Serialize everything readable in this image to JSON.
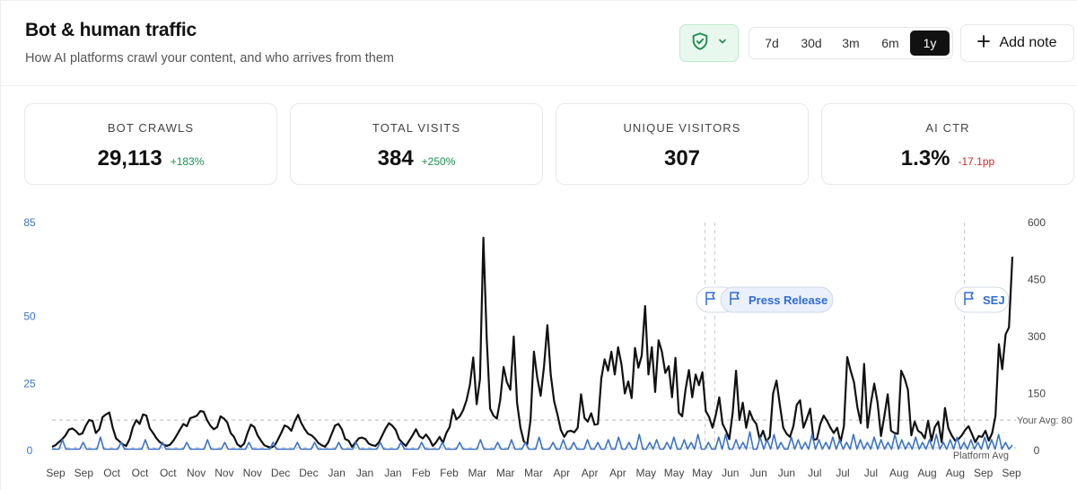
{
  "header": {
    "title": "Bot & human traffic",
    "subtitle": "How AI platforms crawl your content, and who arrives from them"
  },
  "toolbar": {
    "filter_icon": "shield-check-icon",
    "ranges": [
      "7d",
      "30d",
      "3m",
      "6m",
      "1y"
    ],
    "active_range": "1y",
    "add_note_label": "Add note"
  },
  "stats": [
    {
      "label": "BOT CRAWLS",
      "value": "29,113",
      "delta": "+183%",
      "trend": "positive"
    },
    {
      "label": "TOTAL VISITS",
      "value": "384",
      "delta": "+250%",
      "trend": "positive"
    },
    {
      "label": "UNIQUE VISITORS",
      "value": "307",
      "delta": "",
      "trend": "none"
    },
    {
      "label": "AI CTR",
      "value": "1.3%",
      "delta": "-17.1pp",
      "trend": "negative"
    }
  ],
  "colors": {
    "bot_line": "#111111",
    "visits_line": "#3b73c9",
    "positive": "#17924b",
    "negative": "#d12b2b",
    "accent_blue": "#2f6bd8"
  },
  "chart_data": {
    "type": "line",
    "grid": false,
    "x_tick_labels": [
      "Sep",
      "Sep",
      "Oct",
      "Oct",
      "Oct",
      "Nov",
      "Nov",
      "Nov",
      "Dec",
      "Dec",
      "Jan",
      "Jan",
      "Jan",
      "Feb",
      "Feb",
      "Mar",
      "Mar",
      "Mar",
      "Apr",
      "Apr",
      "Apr",
      "May",
      "May",
      "May",
      "Jun",
      "Jun",
      "Jun",
      "Jul",
      "Jul",
      "Jul",
      "Aug",
      "Aug",
      "Aug",
      "Sep",
      "Sep"
    ],
    "y_left": {
      "ticks": [
        "0",
        "25",
        "50",
        "85"
      ],
      "range": [
        0,
        85
      ]
    },
    "y_right": {
      "ticks": [
        "0",
        "150",
        "300",
        "450",
        "600"
      ],
      "range": [
        0,
        600
      ]
    },
    "series": [
      {
        "axis": "right",
        "values": [
          10,
          14,
          22,
          30,
          40,
          55,
          58,
          52,
          42,
          45,
          65,
          80,
          78,
          46,
          56,
          88,
          95,
          100,
          60,
          32,
          24,
          16,
          12,
          30,
          62,
          80,
          70,
          95,
          92,
          58,
          46,
          32,
          22,
          16,
          12,
          15,
          26,
          40,
          56,
          70,
          64,
          85,
          88,
          92,
          104,
          102,
          80,
          65,
          56,
          62,
          90,
          84,
          74,
          46,
          36,
          16,
          10,
          18,
          46,
          68,
          62,
          40,
          26,
          14,
          10,
          8,
          12,
          28,
          46,
          66,
          62,
          52,
          76,
          94,
          72,
          56,
          44,
          40,
          32,
          20,
          14,
          10,
          22,
          44,
          66,
          70,
          56,
          30,
          26,
          10,
          20,
          32,
          34,
          30,
          18,
          14,
          12,
          22,
          40,
          58,
          72,
          65,
          54,
          30,
          20,
          12,
          26,
          40,
          56,
          38,
          32,
          42,
          30,
          12,
          22,
          36,
          20,
          46,
          62,
          108,
          82,
          90,
          106,
          132,
          172,
          245,
          122,
          188,
          560,
          296,
          110,
          92,
          84,
          132,
          220,
          180,
          160,
          300,
          126,
          60,
          24,
          16,
          80,
          260,
          192,
          144,
          220,
          330,
          200,
          130,
          94,
          54,
          36,
          50,
          52,
          48,
          60,
          148,
          86,
          76,
          98,
          68,
          70,
          190,
          240,
          210,
          260,
          200,
          272,
          226,
          150,
          182,
          138,
          270,
          218,
          250,
          380,
          200,
          272,
          154,
          290,
          260,
          204,
          222,
          140,
          244,
          100,
          90,
          160,
          212,
          140,
          200,
          172,
          206,
          104,
          88,
          60,
          94,
          140,
          70,
          52,
          30,
          100,
          210,
          80,
          126,
          60,
          104,
          82,
          70,
          30,
          52,
          24,
          36,
          150,
          184,
          120,
          60,
          44,
          36,
          64,
          120,
          132,
          60,
          84,
          110,
          28,
          30,
          70,
          92,
          78,
          60,
          46,
          60,
          22,
          64,
          246,
          210,
          180,
          114,
          72,
          228,
          60,
          124,
          176,
          126,
          38,
          90,
          148,
          52,
          46,
          44,
          210,
          190,
          160,
          40,
          76,
          52,
          46,
          32,
          78,
          26,
          62,
          76,
          22,
          112,
          58,
          40,
          26,
          30,
          40,
          54,
          64,
          44,
          22,
          38,
          36,
          52,
          26,
          46,
          92,
          280,
          214,
          306,
          324,
          510
        ]
      },
      {
        "axis": "left",
        "values": [
          0.5,
          0.5,
          0.5,
          4,
          0.5,
          0.5,
          0.5,
          0.5,
          0.5,
          3,
          0.5,
          0.5,
          0.5,
          0.5,
          5,
          0.5,
          0.5,
          0.5,
          0.5,
          0.5,
          3,
          0.5,
          0.5,
          0.5,
          0.5,
          0.5,
          0.5,
          4,
          0.5,
          0.5,
          0.5,
          0.5,
          3,
          0.5,
          0.5,
          0.5,
          0.5,
          0.5,
          0.5,
          3,
          0.5,
          0.5,
          0.5,
          0.5,
          0.5,
          4,
          0.5,
          0.5,
          0.5,
          0.5,
          3,
          0.5,
          0.5,
          0.5,
          0.5,
          0.5,
          0.5,
          3,
          0.5,
          0.5,
          0.5,
          0.5,
          0.5,
          0.5,
          3,
          0.5,
          0.5,
          0.5,
          0.5,
          0.5,
          0.5,
          3,
          0.5,
          0.5,
          0.5,
          0.5,
          3,
          0.5,
          0.5,
          0.5,
          0.5,
          0.5,
          0.5,
          3,
          0.5,
          0.5,
          0.5,
          0.5,
          3,
          0.5,
          0.5,
          0.5,
          0.5,
          0.5,
          0.5,
          3,
          0.5,
          0.5,
          0.5,
          0.5,
          0.5,
          3,
          0.5,
          0.5,
          0.5,
          0.5,
          0.5,
          3,
          0.5,
          0.5,
          0.5,
          0.5,
          0.5,
          3,
          0.5,
          0.5,
          0.5,
          0.5,
          3,
          0.5,
          0.5,
          0.5,
          0.5,
          0.5,
          4,
          0.5,
          0.5,
          0.5,
          0.5,
          3,
          0.5,
          0.5,
          0.5,
          4,
          0.5,
          0.5,
          0.5,
          3,
          0.5,
          0.5,
          0.5,
          5,
          0.5,
          0.5,
          0.5,
          3,
          0.5,
          0.5,
          4,
          0.5,
          0.5,
          3,
          0.5,
          0.5,
          0.5,
          4,
          0.5,
          0.5,
          3,
          0.5,
          0.5,
          4,
          0.5,
          0.5,
          5,
          0.5,
          0.5,
          3,
          0.5,
          0.5,
          6,
          0.5,
          0.5,
          3,
          0.5,
          4,
          0.5,
          0.5,
          3,
          0.5,
          5,
          0.5,
          0.5,
          4,
          0.5,
          3,
          0.5,
          6,
          0.5,
          0.5,
          3,
          0.5,
          0.5,
          5,
          0.5,
          6,
          0.5,
          0.5,
          4,
          0.5,
          3,
          0.5,
          7,
          0.5,
          0.5,
          5,
          0.5,
          4,
          0.5,
          6,
          0.5,
          3,
          0.5,
          0.5,
          5,
          0.5,
          4,
          0.5,
          3,
          0.5,
          6,
          0.5,
          4,
          0.5,
          3,
          0.5,
          5,
          0.5,
          4,
          0.5,
          3,
          0.5,
          6,
          0.5,
          4,
          0.5,
          3,
          0.5,
          5,
          0.5,
          4,
          0.5,
          3,
          0.5,
          6,
          0.5,
          4,
          0.5,
          3,
          0.5,
          5,
          0.5,
          3,
          0.5,
          4,
          0.5,
          6,
          0.5,
          3,
          0.5,
          4,
          0.5,
          5,
          0.5,
          3,
          0.5,
          4,
          0.5,
          3,
          0.5,
          5,
          0.5,
          4,
          0.5,
          6,
          0.5,
          3,
          0.5,
          2
        ]
      }
    ],
    "reference_lines": [
      {
        "label": "Your Avg: 80",
        "axis": "right",
        "value": 80
      },
      {
        "label": "Platform Avg",
        "axis": "left",
        "value": 1
      }
    ],
    "annotations": [
      {
        "label": "",
        "at_fraction": 0.68
      },
      {
        "label": "Press Release",
        "at_fraction": 0.69
      },
      {
        "label": "SEJ",
        "at_fraction": 0.95
      }
    ]
  }
}
